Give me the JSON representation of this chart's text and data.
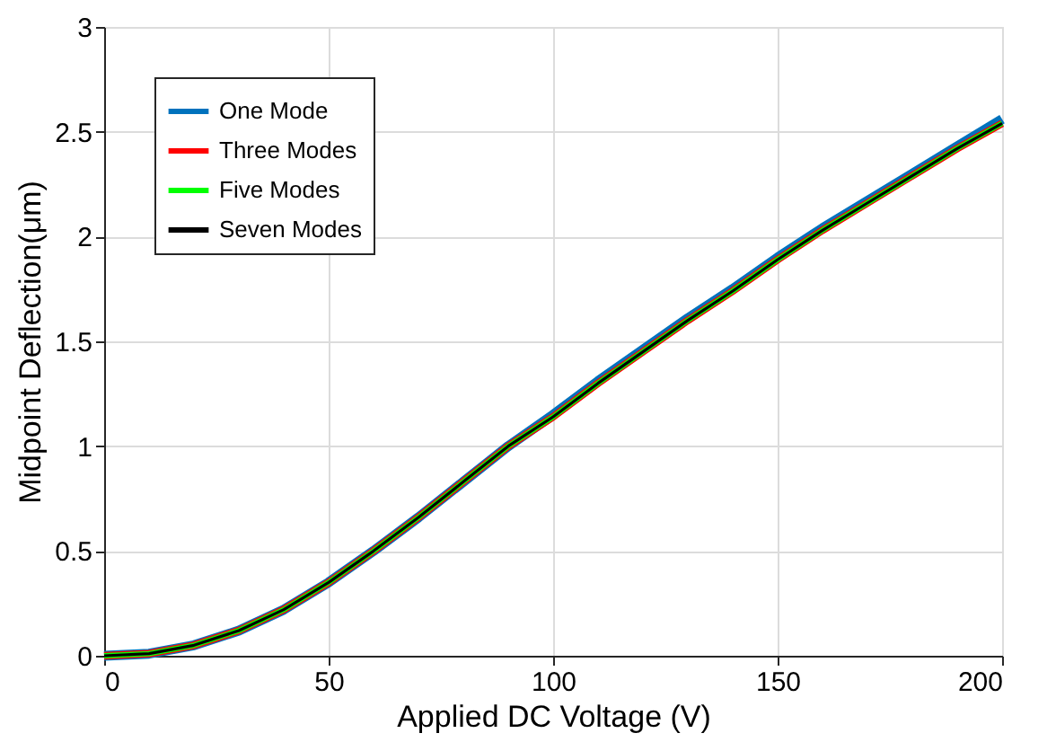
{
  "chart_data": {
    "type": "line",
    "xlabel": "Applied DC Voltage (V)",
    "ylabel": "Midpoint Deflection(μm)",
    "x": [
      0,
      10,
      20,
      30,
      40,
      50,
      60,
      70,
      80,
      90,
      100,
      110,
      120,
      130,
      140,
      150,
      160,
      170,
      180,
      190,
      200
    ],
    "series": [
      {
        "name": "One Mode",
        "color": "#0072bd",
        "values": [
          0,
          0.01,
          0.05,
          0.12,
          0.22,
          0.35,
          0.5,
          0.66,
          0.83,
          1.0,
          1.15,
          1.31,
          1.46,
          1.61,
          1.75,
          1.9,
          2.04,
          2.17,
          2.3,
          2.43,
          2.56
        ]
      },
      {
        "name": "Three Modes",
        "color": "#ff0000",
        "values": [
          0,
          0.01,
          0.05,
          0.12,
          0.22,
          0.35,
          0.5,
          0.66,
          0.83,
          1.0,
          1.14,
          1.3,
          1.45,
          1.6,
          1.74,
          1.89,
          2.03,
          2.16,
          2.29,
          2.42,
          2.54
        ]
      },
      {
        "name": "Five Modes",
        "color": "#00ff00",
        "values": [
          0,
          0.01,
          0.05,
          0.12,
          0.22,
          0.35,
          0.5,
          0.66,
          0.83,
          1.0,
          1.14,
          1.3,
          1.45,
          1.6,
          1.74,
          1.89,
          2.03,
          2.16,
          2.29,
          2.42,
          2.54
        ]
      },
      {
        "name": "Seven Modes",
        "color": "#000000",
        "values": [
          0,
          0.01,
          0.05,
          0.12,
          0.22,
          0.35,
          0.5,
          0.66,
          0.83,
          1.0,
          1.14,
          1.3,
          1.45,
          1.6,
          1.74,
          1.89,
          2.03,
          2.16,
          2.29,
          2.42,
          2.54
        ]
      }
    ],
    "xlim": [
      0,
      200
    ],
    "xticks": [
      0,
      50,
      100,
      150,
      200
    ],
    "ylim": [
      0,
      3
    ],
    "yticks": [
      0,
      0.5,
      1,
      1.5,
      2,
      2.5,
      3
    ],
    "grid": true,
    "legend": "top left",
    "marker": "none",
    "line_style": "solid"
  }
}
